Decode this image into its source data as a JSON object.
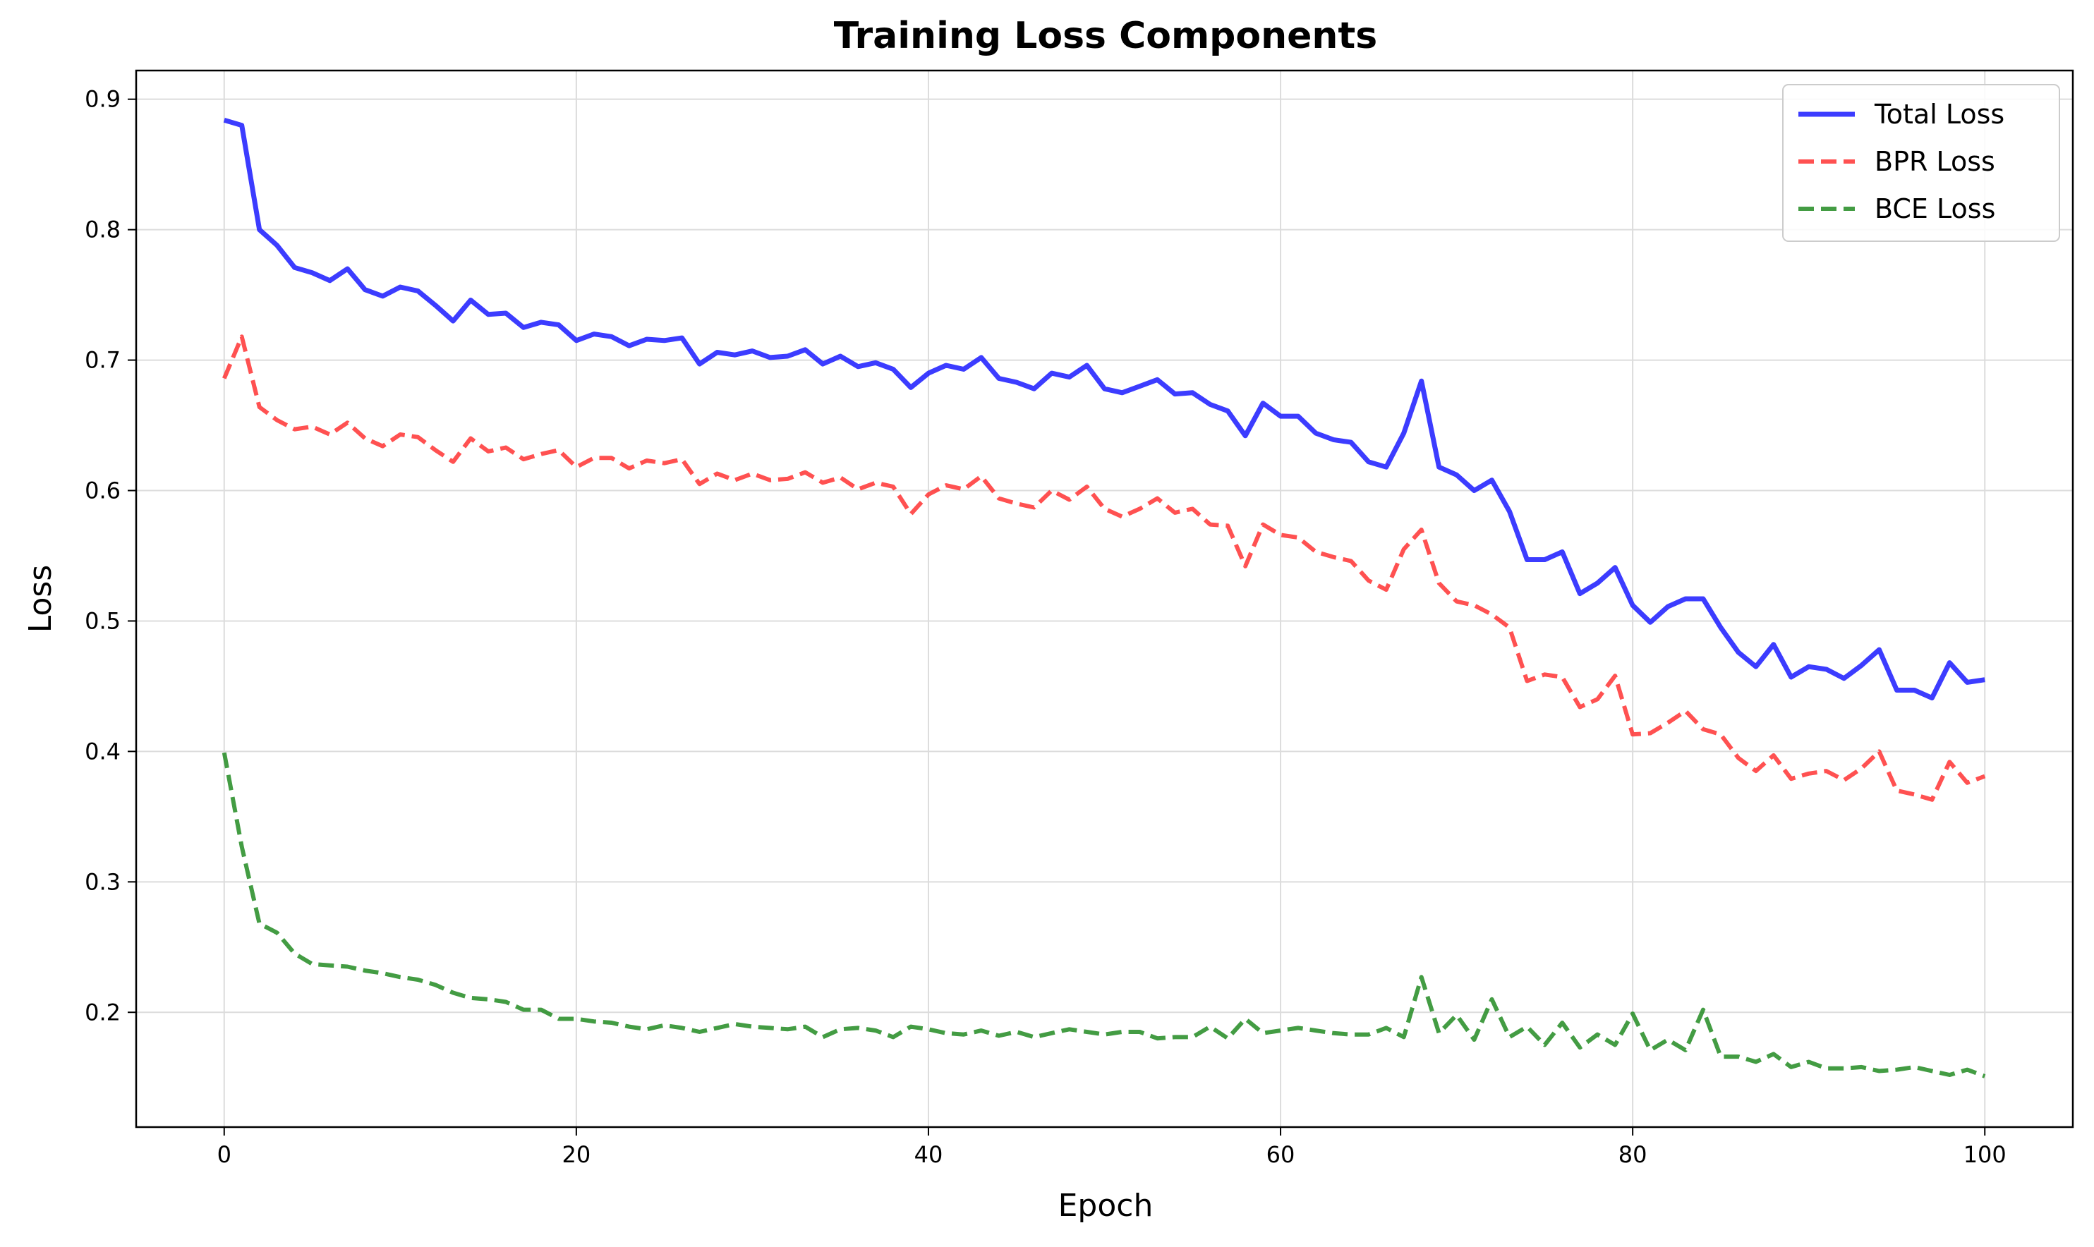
{
  "chart_data": {
    "type": "line",
    "title": "Training Loss Components",
    "xlabel": "Epoch",
    "ylabel": "Loss",
    "xlim": [
      -5,
      105
    ],
    "ylim": [
      0.112,
      0.922
    ],
    "xticks": [
      0,
      20,
      40,
      60,
      80,
      100
    ],
    "yticks": [
      0.2,
      0.3,
      0.4,
      0.5,
      0.6,
      0.7,
      0.8,
      0.9
    ],
    "xtick_labels": [
      "0",
      "20",
      "40",
      "60",
      "80",
      "100"
    ],
    "ytick_labels": [
      "0.2",
      "0.3",
      "0.4",
      "0.5",
      "0.6",
      "0.7",
      "0.8",
      "0.9"
    ],
    "grid": true,
    "legend_position": "top-right",
    "x": [
      0,
      1,
      2,
      3,
      4,
      5,
      6,
      7,
      8,
      9,
      10,
      11,
      12,
      13,
      14,
      15,
      16,
      17,
      18,
      19,
      20,
      21,
      22,
      23,
      24,
      25,
      26,
      27,
      28,
      29,
      30,
      31,
      32,
      33,
      34,
      35,
      36,
      37,
      38,
      39,
      40,
      41,
      42,
      43,
      44,
      45,
      46,
      47,
      48,
      49,
      50,
      51,
      52,
      53,
      54,
      55,
      56,
      57,
      58,
      59,
      60,
      61,
      62,
      63,
      64,
      65,
      66,
      67,
      68,
      69,
      70,
      71,
      72,
      73,
      74,
      75,
      76,
      77,
      78,
      79,
      80,
      81,
      82,
      83,
      84,
      85,
      86,
      87,
      88,
      89,
      90,
      91,
      92,
      93,
      94,
      95,
      96,
      97,
      98,
      99,
      100
    ],
    "series": [
      {
        "name": "Total Loss",
        "color": "#1a1aff",
        "style": "solid",
        "values": [
          0.884,
          0.88,
          0.8,
          0.788,
          0.771,
          0.767,
          0.761,
          0.77,
          0.754,
          0.749,
          0.756,
          0.753,
          0.742,
          0.73,
          0.746,
          0.735,
          0.736,
          0.725,
          0.729,
          0.727,
          0.715,
          0.72,
          0.718,
          0.711,
          0.716,
          0.715,
          0.717,
          0.697,
          0.706,
          0.704,
          0.707,
          0.702,
          0.703,
          0.708,
          0.697,
          0.703,
          0.695,
          0.698,
          0.693,
          0.679,
          0.69,
          0.696,
          0.693,
          0.702,
          0.686,
          0.683,
          0.678,
          0.69,
          0.687,
          0.696,
          0.678,
          0.675,
          0.68,
          0.685,
          0.674,
          0.675,
          0.666,
          0.661,
          0.642,
          0.667,
          0.657,
          0.657,
          0.644,
          0.639,
          0.637,
          0.622,
          0.618,
          0.644,
          0.684,
          0.618,
          0.612,
          0.6,
          0.608,
          0.584,
          0.547,
          0.547,
          0.553,
          0.521,
          0.529,
          0.541,
          0.512,
          0.499,
          0.511,
          0.517,
          0.517,
          0.495,
          0.476,
          0.465,
          0.482,
          0.457,
          0.465,
          0.463,
          0.456,
          0.466,
          0.478,
          0.447,
          0.447,
          0.441,
          0.468,
          0.453,
          0.455
        ]
      },
      {
        "name": "BPR Loss",
        "color": "#ff3333",
        "style": "dashed",
        "values": [
          0.686,
          0.718,
          0.664,
          0.654,
          0.647,
          0.649,
          0.643,
          0.652,
          0.64,
          0.634,
          0.643,
          0.641,
          0.631,
          0.622,
          0.64,
          0.63,
          0.633,
          0.624,
          0.628,
          0.631,
          0.618,
          0.625,
          0.625,
          0.617,
          0.623,
          0.621,
          0.624,
          0.605,
          0.613,
          0.608,
          0.613,
          0.608,
          0.609,
          0.614,
          0.606,
          0.61,
          0.601,
          0.606,
          0.603,
          0.582,
          0.597,
          0.604,
          0.601,
          0.611,
          0.594,
          0.59,
          0.587,
          0.6,
          0.593,
          0.603,
          0.586,
          0.58,
          0.586,
          0.594,
          0.583,
          0.586,
          0.574,
          0.573,
          0.542,
          0.574,
          0.566,
          0.564,
          0.553,
          0.549,
          0.546,
          0.531,
          0.524,
          0.555,
          0.57,
          0.529,
          0.515,
          0.512,
          0.505,
          0.495,
          0.454,
          0.459,
          0.457,
          0.434,
          0.44,
          0.458,
          0.413,
          0.414,
          0.422,
          0.431,
          0.417,
          0.413,
          0.395,
          0.385,
          0.397,
          0.379,
          0.383,
          0.385,
          0.378,
          0.387,
          0.4,
          0.37,
          0.367,
          0.363,
          0.392,
          0.376,
          0.381
        ]
      },
      {
        "name": "BCE Loss",
        "color": "#228b22",
        "style": "dashed",
        "values": [
          0.399,
          0.327,
          0.268,
          0.261,
          0.245,
          0.237,
          0.236,
          0.235,
          0.232,
          0.23,
          0.227,
          0.225,
          0.221,
          0.215,
          0.211,
          0.21,
          0.208,
          0.202,
          0.202,
          0.195,
          0.195,
          0.193,
          0.192,
          0.189,
          0.187,
          0.19,
          0.188,
          0.185,
          0.188,
          0.191,
          0.189,
          0.188,
          0.187,
          0.189,
          0.181,
          0.187,
          0.188,
          0.186,
          0.181,
          0.189,
          0.187,
          0.184,
          0.183,
          0.186,
          0.182,
          0.185,
          0.181,
          0.184,
          0.187,
          0.185,
          0.183,
          0.185,
          0.185,
          0.18,
          0.181,
          0.181,
          0.189,
          0.18,
          0.195,
          0.184,
          0.186,
          0.188,
          0.186,
          0.184,
          0.183,
          0.183,
          0.188,
          0.181,
          0.227,
          0.184,
          0.198,
          0.179,
          0.21,
          0.181,
          0.189,
          0.175,
          0.192,
          0.173,
          0.183,
          0.175,
          0.199,
          0.171,
          0.179,
          0.171,
          0.202,
          0.166,
          0.166,
          0.162,
          0.168,
          0.158,
          0.162,
          0.157,
          0.157,
          0.158,
          0.155,
          0.156,
          0.158,
          0.155,
          0.152,
          0.156,
          0.151
        ]
      }
    ]
  }
}
